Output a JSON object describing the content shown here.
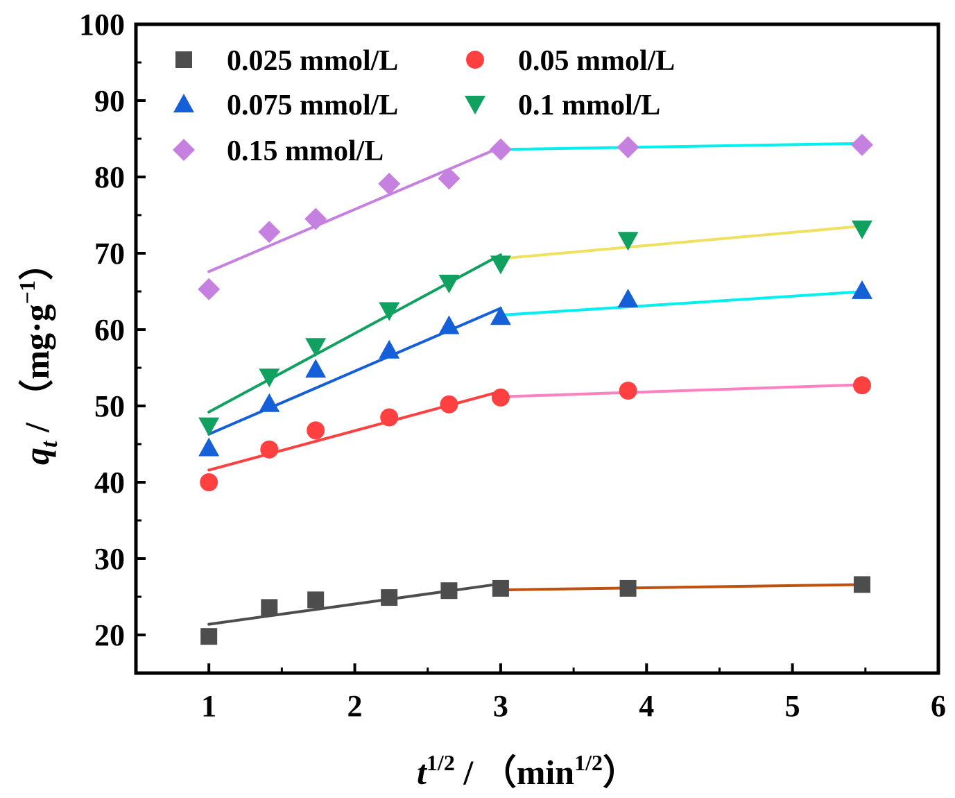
{
  "chart_data": {
    "type": "scatter",
    "title": "",
    "xlabel": {
      "var": "t",
      "exp": "1/2",
      "sep": " / ",
      "open": "（",
      "unit": "min",
      "unit_exp": "1/2",
      "close": "）"
    },
    "ylabel": {
      "var": "q",
      "sub": "t",
      "sep": " / ",
      "open": "（",
      "unit": "mg·g",
      "unit_exp": "−1",
      "close": "）"
    },
    "xlim": [
      0.5,
      6
    ],
    "ylim": [
      15,
      100
    ],
    "xticks": [
      1,
      2,
      3,
      4,
      5,
      6
    ],
    "yticks": [
      20,
      30,
      40,
      50,
      60,
      70,
      80,
      90,
      100
    ],
    "xtick_labels": [
      "1",
      "2",
      "3",
      "4",
      "5",
      "6"
    ],
    "ytick_labels": [
      "20",
      "30",
      "40",
      "50",
      "60",
      "70",
      "80",
      "90",
      "100"
    ],
    "grid": false,
    "legend_position": "top-left",
    "x": [
      1.0,
      1.414,
      1.732,
      2.236,
      2.646,
      3.0,
      3.873,
      5.477
    ],
    "series": [
      {
        "name": "0.025 mmol/L",
        "marker": "square",
        "color": "#4d4d4d",
        "values": [
          19.8,
          23.6,
          24.6,
          24.9,
          25.8,
          26.1,
          26.1,
          26.6
        ],
        "fits": [
          {
            "x": [
              1.0,
              3.0
            ],
            "y": [
              21.4,
              26.7
            ],
            "color": "#4d4d4d"
          },
          {
            "x": [
              3.0,
              5.5
            ],
            "y": [
              25.9,
              26.6
            ],
            "color": "#c05010"
          }
        ]
      },
      {
        "name": "0.05 mmol/L",
        "marker": "circle",
        "color": "#ff4040",
        "values": [
          40.0,
          44.3,
          46.8,
          48.5,
          50.2,
          51.1,
          52.0,
          52.7
        ],
        "fits": [
          {
            "x": [
              1.0,
              3.0
            ],
            "y": [
              41.6,
              51.9
            ],
            "color": "#ff4040"
          },
          {
            "x": [
              3.0,
              5.5
            ],
            "y": [
              51.2,
              52.8
            ],
            "color": "#ff80c0"
          }
        ]
      },
      {
        "name": "0.075 mmol/L",
        "marker": "triangle-up",
        "color": "#1560d8",
        "values": [
          44.5,
          50.3,
          54.8,
          57.3,
          60.5,
          61.7,
          64.0,
          65.1
        ],
        "fits": [
          {
            "x": [
              1.0,
              3.0
            ],
            "y": [
              46.3,
              62.8
            ],
            "color": "#1560d8"
          },
          {
            "x": [
              3.0,
              5.5
            ],
            "y": [
              61.9,
              65.0
            ],
            "color": "#00f0f0"
          }
        ]
      },
      {
        "name": "0.1 mmol/L",
        "marker": "triangle-down",
        "color": "#10a060",
        "values": [
          47.4,
          53.8,
          57.8,
          62.5,
          66.1,
          68.6,
          71.7,
          73.2
        ],
        "fits": [
          {
            "x": [
              1.0,
              3.0
            ],
            "y": [
              49.2,
              69.8
            ],
            "color": "#10a060"
          },
          {
            "x": [
              3.0,
              5.5
            ],
            "y": [
              69.3,
              73.6
            ],
            "color": "#f0e060"
          }
        ]
      },
      {
        "name": "0.15 mmol/L",
        "marker": "diamond",
        "color": "#c680e0",
        "values": [
          65.3,
          72.8,
          74.5,
          79.1,
          79.8,
          83.6,
          83.9,
          84.2
        ],
        "fits": [
          {
            "x": [
              1.0,
              3.0
            ],
            "y": [
              67.6,
              83.9
            ],
            "color": "#c680e0"
          },
          {
            "x": [
              3.0,
              5.5
            ],
            "y": [
              83.6,
              84.4
            ],
            "color": "#00f0f0"
          }
        ]
      }
    ]
  }
}
